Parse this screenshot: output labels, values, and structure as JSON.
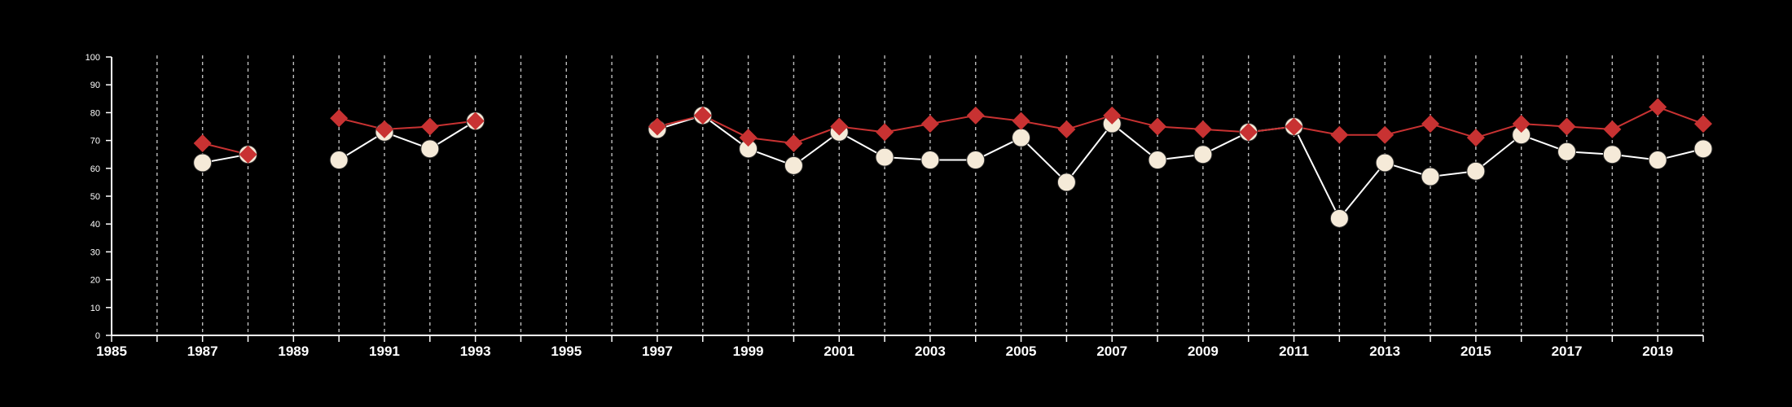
{
  "chart_data": {
    "type": "line",
    "title": "",
    "xlabel": "",
    "ylabel": "",
    "xlim": [
      1985,
      2020
    ],
    "ylim": [
      0,
      100
    ],
    "x_ticks_labeled": [
      1985,
      1987,
      1989,
      1991,
      1993,
      1995,
      1997,
      1999,
      2001,
      2003,
      2005,
      2007,
      2009,
      2011,
      2013,
      2015,
      2017,
      2019
    ],
    "y_ticks": [
      0,
      10,
      20,
      30,
      40,
      50,
      60,
      70,
      80,
      90,
      100
    ],
    "grid": "vertical dashed lines at each year",
    "legend": "none",
    "series": [
      {
        "color": "#f5ead8",
        "marker": "circle",
        "line_color": "#ffffff",
        "points": [
          [
            1987,
            62
          ],
          [
            1988,
            65
          ],
          [
            1990,
            63
          ],
          [
            1991,
            73
          ],
          [
            1992,
            67
          ],
          [
            1993,
            77
          ],
          [
            1997,
            74
          ],
          [
            1998,
            79
          ],
          [
            1999,
            67
          ],
          [
            2000,
            61
          ],
          [
            2001,
            73
          ],
          [
            2002,
            64
          ],
          [
            2003,
            63
          ],
          [
            2004,
            63
          ],
          [
            2005,
            71
          ],
          [
            2006,
            55
          ],
          [
            2007,
            76
          ],
          [
            2008,
            63
          ],
          [
            2009,
            65
          ],
          [
            2010,
            73
          ],
          [
            2011,
            75
          ],
          [
            2012,
            42
          ],
          [
            2013,
            62
          ],
          [
            2014,
            57
          ],
          [
            2015,
            59
          ],
          [
            2016,
            72
          ],
          [
            2017,
            66
          ],
          [
            2018,
            65
          ],
          [
            2019,
            63
          ],
          [
            2020,
            67
          ]
        ]
      },
      {
        "color": "#c83232",
        "marker": "diamond",
        "line_color": "#c83232",
        "points": [
          [
            1987,
            69
          ],
          [
            1988,
            65
          ],
          [
            1990,
            78
          ],
          [
            1991,
            74
          ],
          [
            1992,
            75
          ],
          [
            1993,
            77
          ],
          [
            1997,
            75
          ],
          [
            1998,
            79
          ],
          [
            1999,
            71
          ],
          [
            2000,
            69
          ],
          [
            2001,
            75
          ],
          [
            2002,
            73
          ],
          [
            2003,
            76
          ],
          [
            2004,
            79
          ],
          [
            2005,
            77
          ],
          [
            2006,
            74
          ],
          [
            2007,
            79
          ],
          [
            2008,
            75
          ],
          [
            2009,
            74
          ],
          [
            2010,
            73
          ],
          [
            2011,
            75
          ],
          [
            2012,
            72
          ],
          [
            2013,
            72
          ],
          [
            2014,
            76
          ],
          [
            2015,
            71
          ],
          [
            2016,
            76
          ],
          [
            2017,
            75
          ],
          [
            2018,
            74
          ],
          [
            2019,
            82
          ],
          [
            2020,
            76
          ]
        ]
      }
    ]
  }
}
